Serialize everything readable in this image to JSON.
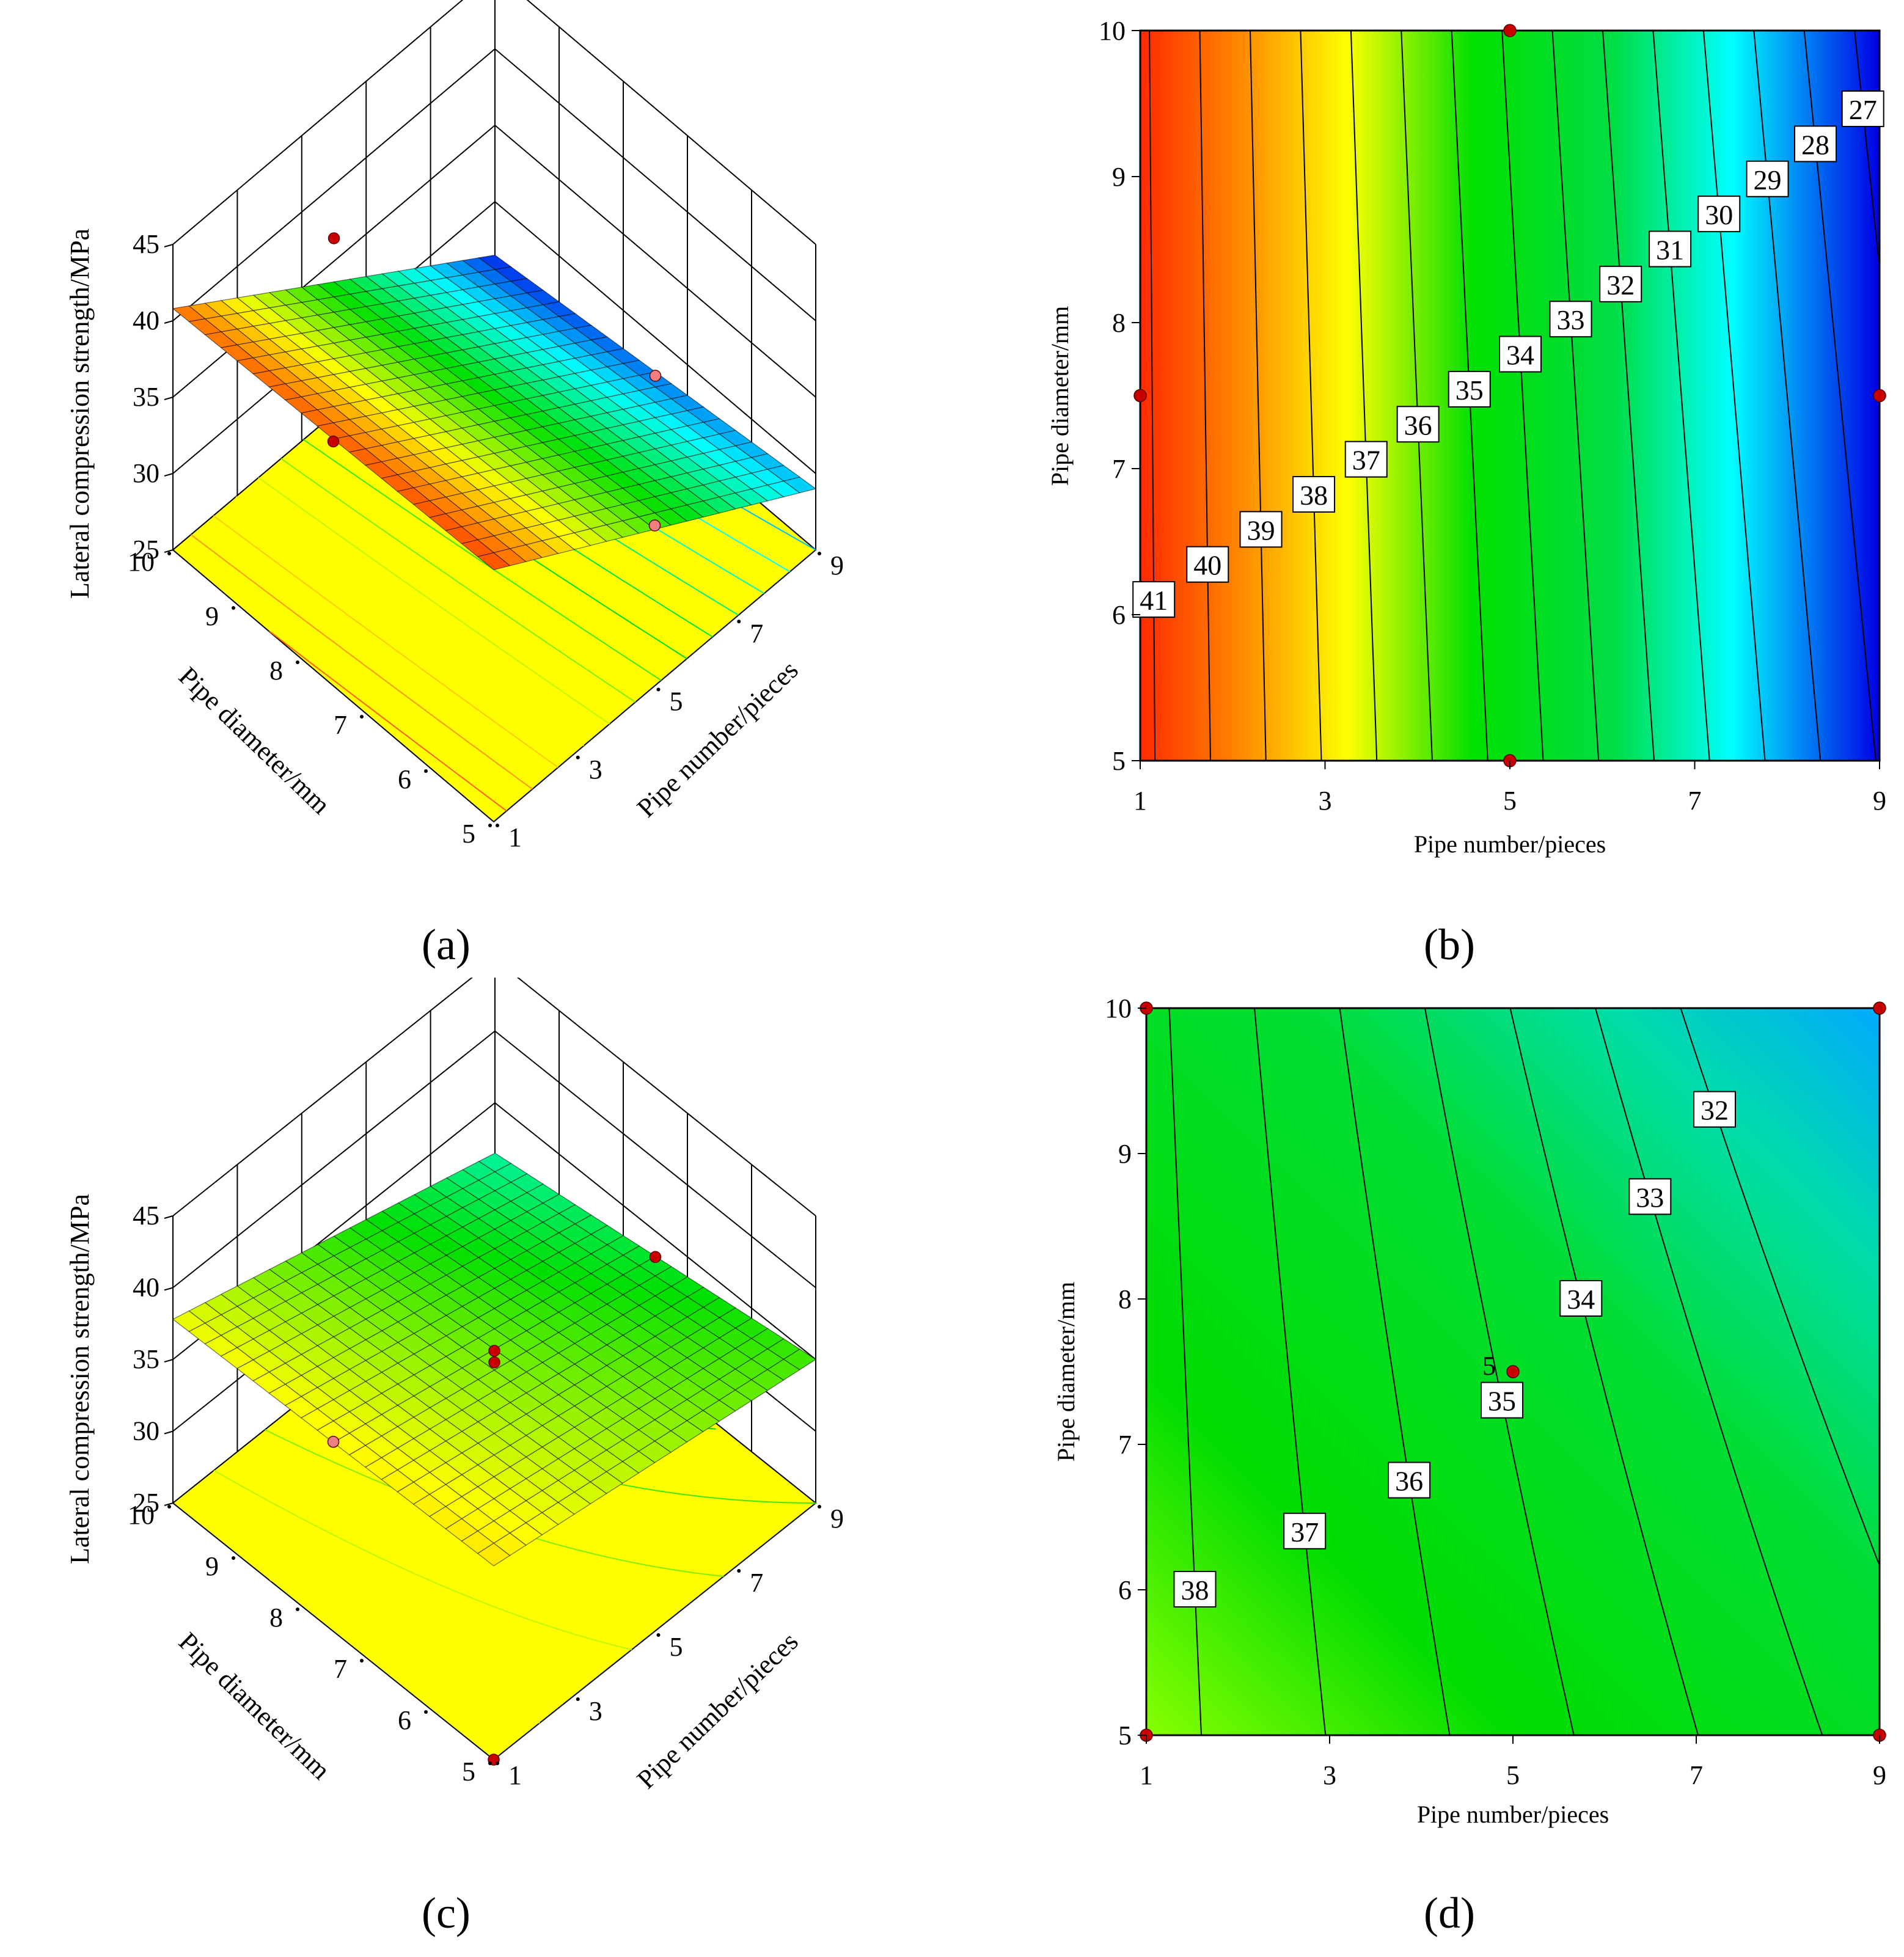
{
  "panels": {
    "a": {
      "label": "(a)"
    },
    "b": {
      "label": "(b)"
    },
    "c": {
      "label": "(c)"
    },
    "d": {
      "label": "(d)"
    }
  },
  "axes": {
    "x_title": "Pipe number/pieces",
    "y_title": "Pipe diameter/mm",
    "z_title": "Lateral compression strength/MPa"
  },
  "colors": {
    "red": "#ff2a00",
    "orange": "#ff8c00",
    "yellow": "#ffff00",
    "green": "#00e000",
    "cyan": "#00ffff",
    "blue": "#0000e6",
    "floor": "#ffff00",
    "design_point": "#c80000"
  },
  "chart_data": [
    {
      "panel": "a",
      "type": "surface3d",
      "xlabel": "Pipe number/pieces",
      "ylabel": "Pipe diameter/mm",
      "zlabel": "Lateral compression strength/MPa",
      "x_ticks": [
        "1",
        "3",
        "5",
        "7",
        "9"
      ],
      "y_ticks": [
        "5",
        "6",
        "7",
        "8",
        "9",
        "10"
      ],
      "z_ticks": [
        "25",
        "30",
        "35",
        "40",
        "45"
      ],
      "xlim": [
        1,
        9
      ],
      "ylim": [
        5,
        10
      ],
      "zlim": [
        25,
        45
      ],
      "corners": [
        {
          "x": 1,
          "y": 5,
          "z": 41.5
        },
        {
          "x": 1,
          "y": 10,
          "z": 40.8
        },
        {
          "x": 9,
          "y": 5,
          "z": 29.0
        },
        {
          "x": 9,
          "y": 10,
          "z": 26.5
        }
      ]
    },
    {
      "panel": "b",
      "type": "contour",
      "xlabel": "Pipe number/pieces",
      "ylabel": "Pipe diameter/mm",
      "x_ticks": [
        "1",
        "3",
        "5",
        "7",
        "9"
      ],
      "y_ticks": [
        "5",
        "6",
        "7",
        "8",
        "9",
        "10"
      ],
      "xlim": [
        1,
        9
      ],
      "ylim": [
        5,
        10
      ],
      "levels": [
        41,
        40,
        39,
        38,
        37,
        36,
        35,
        34,
        33,
        32,
        31,
        30,
        29,
        28,
        27
      ],
      "level_labels": [
        "41",
        "40",
        "39",
        "38",
        "37",
        "36",
        "35",
        "34",
        "33",
        "32",
        "31",
        "30",
        "29",
        "28",
        "27"
      ],
      "design_points": [
        {
          "x": 5,
          "y": 10
        },
        {
          "x": 1,
          "y": 7.5
        },
        {
          "x": 9,
          "y": 7.5
        },
        {
          "x": 5,
          "y": 5
        }
      ]
    },
    {
      "panel": "c",
      "type": "surface3d",
      "xlabel": "Pipe number/pieces",
      "ylabel": "Pipe diameter/mm",
      "zlabel": "Lateral compression strength/MPa",
      "x_ticks": [
        "1",
        "3",
        "5",
        "7",
        "9"
      ],
      "y_ticks": [
        "5",
        "6",
        "7",
        "8",
        "9",
        "10"
      ],
      "z_ticks": [
        "25",
        "30",
        "35",
        "40",
        "45"
      ],
      "xlim": [
        1,
        9
      ],
      "ylim": [
        5,
        10
      ],
      "zlim": [
        25,
        45
      ],
      "corners": [
        {
          "x": 1,
          "y": 5,
          "z": 38.5
        },
        {
          "x": 1,
          "y": 10,
          "z": 37.8
        },
        {
          "x": 9,
          "y": 5,
          "z": 35.0
        },
        {
          "x": 9,
          "y": 10,
          "z": 31.5
        }
      ]
    },
    {
      "panel": "d",
      "type": "contour",
      "xlabel": "Pipe number/pieces",
      "ylabel": "Pipe diameter/mm",
      "x_ticks": [
        "1",
        "3",
        "5",
        "7",
        "9"
      ],
      "y_ticks": [
        "5",
        "6",
        "7",
        "8",
        "9",
        "10"
      ],
      "xlim": [
        1,
        9
      ],
      "ylim": [
        5,
        10
      ],
      "levels": [
        38,
        37,
        36,
        35,
        34,
        33,
        32
      ],
      "level_labels": [
        "38",
        "37",
        "36",
        "35",
        "34",
        "33",
        "32"
      ],
      "design_points": [
        {
          "x": 1,
          "y": 10
        },
        {
          "x": 9,
          "y": 10
        },
        {
          "x": 1,
          "y": 5
        },
        {
          "x": 9,
          "y": 5
        },
        {
          "x": 5,
          "y": 7.5
        }
      ],
      "center_point_label": "5"
    }
  ]
}
